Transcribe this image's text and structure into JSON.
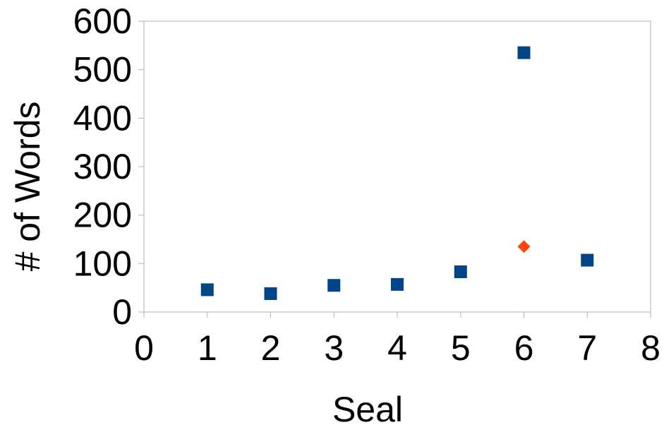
{
  "chart_data": {
    "type": "scatter",
    "title": "",
    "xlabel": "Seal",
    "ylabel": "# of Words",
    "xlim": [
      0,
      8
    ],
    "ylim": [
      0,
      600
    ],
    "x_ticks": [
      "0",
      "1",
      "2",
      "3",
      "4",
      "5",
      "6",
      "7",
      "8"
    ],
    "y_ticks": [
      "0",
      "100",
      "200",
      "300",
      "400",
      "500",
      "600"
    ],
    "grid": false,
    "legend": "none",
    "series": [
      {
        "marker": "square",
        "color": "#004586",
        "points": [
          {
            "x": 1,
            "y": 46
          },
          {
            "x": 2,
            "y": 38
          },
          {
            "x": 3,
            "y": 55
          },
          {
            "x": 4,
            "y": 57
          },
          {
            "x": 5,
            "y": 83
          },
          {
            "x": 6,
            "y": 535
          },
          {
            "x": 7,
            "y": 107
          }
        ]
      },
      {
        "marker": "diamond",
        "color": "#ff420e",
        "points": [
          {
            "x": 6,
            "y": 135
          }
        ]
      }
    ]
  }
}
